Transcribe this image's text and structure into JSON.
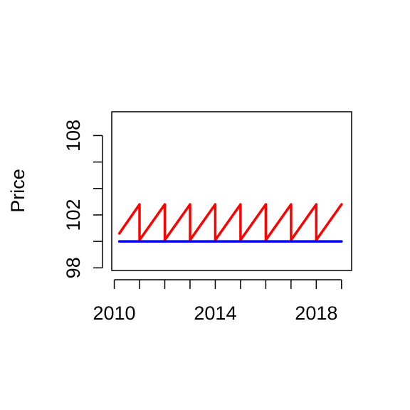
{
  "chart_data": {
    "type": "line",
    "title": "",
    "xlabel": "",
    "ylabel": "Price",
    "xlim": [
      2009.9,
      2019.4
    ],
    "ylim": [
      97.8,
      109.8
    ],
    "x_ticks": [
      2010,
      2011,
      2012,
      2013,
      2014,
      2015,
      2016,
      2017,
      2018,
      2019
    ],
    "x_tick_labels": [
      "2010",
      "",
      "",
      "",
      "2014",
      "",
      "",
      "",
      "2018",
      ""
    ],
    "y_ticks": [
      98,
      100,
      102,
      104,
      106,
      108
    ],
    "y_tick_labels": [
      "98",
      "",
      "102",
      "",
      "",
      "108"
    ],
    "grid": false,
    "legend": "none",
    "series": [
      {
        "color": "#ff0000",
        "x": [
          2010.2,
          2011.0,
          2011.0,
          2012.0,
          2012.0,
          2013.0,
          2013.0,
          2014.0,
          2014.0,
          2015.0,
          2015.0,
          2016.0,
          2016.0,
          2017.0,
          2017.0,
          2018.0,
          2018.0,
          2019.0
        ],
        "values": [
          100.6,
          102.8,
          100.1,
          102.8,
          100.1,
          102.8,
          100.1,
          102.8,
          100.1,
          102.8,
          100.1,
          102.8,
          100.1,
          102.8,
          100.1,
          102.8,
          100.1,
          102.8
        ]
      },
      {
        "color": "#0000ff",
        "x": [
          2010.2,
          2019.0
        ],
        "values": [
          100.0,
          100.0
        ]
      }
    ]
  }
}
